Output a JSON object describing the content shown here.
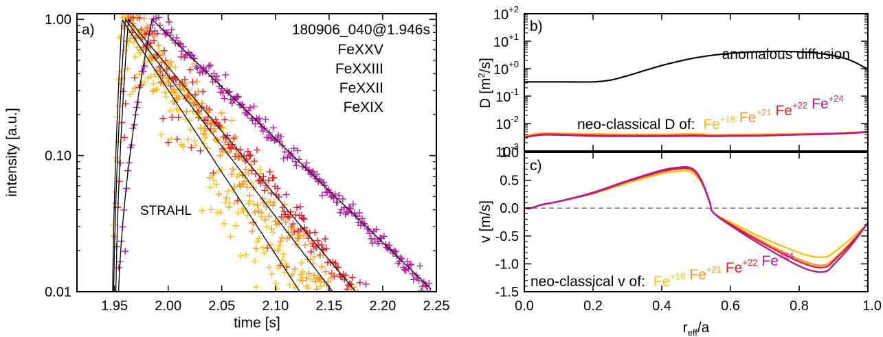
{
  "colors": {
    "FeXXV": "#b5179e",
    "FeXXIII": "#e8191f",
    "FeXXII": "#f7941d",
    "FeXIX": "#fdc010",
    "axis": "#000000",
    "zero_line": "#666666"
  },
  "chart_data": [
    {
      "id": "a",
      "type": "scatter",
      "panel_label": "a)",
      "shot_label": "180906_040@1.946s",
      "annotation": "STRAHL",
      "xlabel": "time [s]",
      "ylabel": "intensity [a.u.]",
      "xlim": [
        1.915,
        2.25
      ],
      "ylim": [
        0.01,
        1.1
      ],
      "yscale": "log",
      "xticks": [
        "1.95",
        "2.00",
        "2.05",
        "2.10",
        "2.15",
        "2.20",
        "2.25"
      ],
      "xtick_values": [
        1.95,
        2.0,
        2.05,
        2.1,
        2.15,
        2.2,
        2.25
      ],
      "yticks": [
        "1.00",
        "0.10",
        "0.01"
      ],
      "ytick_values": [
        1.0,
        0.1,
        0.01
      ],
      "legend_position": "top-right",
      "series": [
        {
          "name": "FeXXV",
          "t_rise": 1.953,
          "t_peak": 1.985,
          "decay_tau": 0.057,
          "t_end": 2.245,
          "scatter": 0.08
        },
        {
          "name": "FeXXIII",
          "t_rise": 1.951,
          "t_peak": 1.963,
          "decay_tau": 0.046,
          "t_end": 2.245,
          "scatter": 0.14
        },
        {
          "name": "FeXXII",
          "t_rise": 1.949,
          "t_peak": 1.96,
          "decay_tau": 0.042,
          "t_end": 2.245,
          "scatter": 0.24
        },
        {
          "name": "FeXIX",
          "t_rise": 1.948,
          "t_peak": 1.957,
          "decay_tau": 0.036,
          "t_end": 2.245,
          "scatter": 0.4
        }
      ]
    },
    {
      "id": "b",
      "type": "line",
      "panel_label": "b)",
      "ylabel": "D [m²/s]",
      "yscale": "log",
      "ylim": [
        0.001,
        100
      ],
      "xlim": [
        0,
        1
      ],
      "yticks_mantissa": "10",
      "yticks_exponents": [
        "+2",
        "+1",
        "+0",
        "-1",
        "-2",
        "-3"
      ],
      "ytick_values": [
        100,
        10,
        1,
        0.1,
        0.01,
        0.001
      ],
      "annotation": "anomalous diffusion",
      "neo_label": "neo-classical D of:",
      "anomalous": {
        "x": [
          0.0,
          0.1,
          0.2,
          0.25,
          0.3,
          0.35,
          0.4,
          0.45,
          0.5,
          0.55,
          0.6,
          0.65,
          0.7,
          0.75,
          0.8,
          0.85,
          0.9,
          0.95,
          1.0
        ],
        "y": [
          0.33,
          0.33,
          0.33,
          0.38,
          0.55,
          0.85,
          1.3,
          1.85,
          2.5,
          3.1,
          3.6,
          4.0,
          4.2,
          4.25,
          4.1,
          3.7,
          3.0,
          2.0,
          0.95
        ]
      },
      "series": [
        {
          "name": "Fe+18",
          "ion": "Fe",
          "charge": "+18",
          "x": [
            0.0,
            0.05,
            0.1,
            0.2,
            0.3,
            0.4,
            0.5,
            0.55,
            0.6,
            0.7,
            0.8,
            0.9,
            1.0
          ],
          "y": [
            0.0035,
            0.0045,
            0.0045,
            0.0042,
            0.0041,
            0.0041,
            0.0042,
            0.004,
            0.004,
            0.0041,
            0.0043,
            0.0045,
            0.0051
          ]
        },
        {
          "name": "Fe+21",
          "ion": "Fe",
          "charge": "+21",
          "x": [
            0.0,
            0.05,
            0.1,
            0.2,
            0.3,
            0.4,
            0.5,
            0.55,
            0.6,
            0.7,
            0.8,
            0.9,
            1.0
          ],
          "y": [
            0.0033,
            0.0042,
            0.0042,
            0.0039,
            0.0038,
            0.0038,
            0.0039,
            0.0037,
            0.0038,
            0.0039,
            0.0041,
            0.0044,
            0.005
          ]
        },
        {
          "name": "Fe+22",
          "ion": "Fe",
          "charge": "+22",
          "x": [
            0.0,
            0.05,
            0.1,
            0.2,
            0.3,
            0.4,
            0.5,
            0.55,
            0.6,
            0.7,
            0.8,
            0.9,
            1.0
          ],
          "y": [
            0.0032,
            0.004,
            0.004,
            0.0037,
            0.0036,
            0.0036,
            0.0037,
            0.0035,
            0.0036,
            0.0037,
            0.004,
            0.0043,
            0.0049
          ]
        },
        {
          "name": "Fe+24",
          "ion": "Fe",
          "charge": "+24",
          "x": [
            0.0,
            0.05,
            0.1,
            0.2,
            0.3,
            0.4,
            0.5,
            0.55,
            0.6,
            0.7,
            0.8,
            0.9,
            1.0
          ],
          "y": [
            0.0031,
            0.0038,
            0.0038,
            0.0035,
            0.0034,
            0.0034,
            0.0035,
            0.0034,
            0.0035,
            0.0036,
            0.0039,
            0.0042,
            0.0048
          ]
        }
      ]
    },
    {
      "id": "c",
      "type": "line",
      "panel_label": "c)",
      "xlabel_main": "r",
      "xlabel_sub": "eff",
      "xlabel_tail": "/a",
      "ylabel": "v [m/s]",
      "xlim": [
        0,
        1
      ],
      "ylim": [
        -1.5,
        1.0
      ],
      "xticks": [
        "0.0",
        "0.2",
        "0.4",
        "0.6",
        "0.8",
        "1.0"
      ],
      "xtick_values": [
        0,
        0.2,
        0.4,
        0.6,
        0.8,
        1.0
      ],
      "yticks": [
        "1.0",
        "0.5",
        "0.0",
        "-0.5",
        "-1.0",
        "-1.5"
      ],
      "ytick_values": [
        1.0,
        0.5,
        0.0,
        -0.5,
        -1.0,
        -1.5
      ],
      "zero_line": 0.0,
      "neo_label": "neo-classical v of:",
      "series": [
        {
          "name": "Fe+18",
          "ion": "Fe",
          "charge": "+18",
          "x": [
            0.0,
            0.02,
            0.05,
            0.1,
            0.2,
            0.3,
            0.4,
            0.45,
            0.48,
            0.5,
            0.52,
            0.54,
            0.55,
            0.6,
            0.7,
            0.8,
            0.85,
            0.88,
            0.9,
            0.95,
            1.0
          ],
          "y": [
            0.0,
            0.0,
            0.06,
            0.12,
            0.26,
            0.45,
            0.62,
            0.66,
            0.66,
            0.58,
            0.4,
            0.1,
            -0.08,
            -0.25,
            -0.55,
            -0.8,
            -0.88,
            -0.87,
            -0.8,
            -0.55,
            -0.28
          ]
        },
        {
          "name": "Fe+21",
          "ion": "Fe",
          "charge": "+21",
          "x": [
            0.0,
            0.02,
            0.05,
            0.1,
            0.2,
            0.3,
            0.4,
            0.45,
            0.48,
            0.5,
            0.52,
            0.54,
            0.55,
            0.6,
            0.7,
            0.8,
            0.85,
            0.88,
            0.9,
            0.95,
            1.0
          ],
          "y": [
            0.0,
            0.0,
            0.06,
            0.12,
            0.27,
            0.47,
            0.65,
            0.7,
            0.7,
            0.62,
            0.42,
            0.1,
            -0.08,
            -0.28,
            -0.62,
            -0.92,
            -1.02,
            -1.01,
            -0.92,
            -0.62,
            -0.28
          ]
        },
        {
          "name": "Fe+22",
          "ion": "Fe",
          "charge": "+22",
          "x": [
            0.0,
            0.02,
            0.05,
            0.1,
            0.2,
            0.3,
            0.4,
            0.45,
            0.48,
            0.5,
            0.52,
            0.54,
            0.55,
            0.6,
            0.7,
            0.8,
            0.85,
            0.88,
            0.9,
            0.95,
            1.0
          ],
          "y": [
            0.0,
            0.0,
            0.06,
            0.12,
            0.27,
            0.48,
            0.66,
            0.71,
            0.71,
            0.63,
            0.43,
            0.1,
            -0.08,
            -0.29,
            -0.65,
            -0.96,
            -1.06,
            -1.05,
            -0.95,
            -0.64,
            -0.27
          ]
        },
        {
          "name": "Fe+24",
          "ion": "Fe",
          "charge": "+24",
          "x": [
            0.0,
            0.02,
            0.05,
            0.1,
            0.2,
            0.3,
            0.4,
            0.45,
            0.48,
            0.5,
            0.52,
            0.54,
            0.55,
            0.6,
            0.7,
            0.8,
            0.85,
            0.88,
            0.9,
            0.95,
            1.0
          ],
          "y": [
            0.0,
            0.0,
            0.06,
            0.12,
            0.28,
            0.49,
            0.68,
            0.73,
            0.73,
            0.65,
            0.44,
            0.1,
            -0.08,
            -0.31,
            -0.7,
            -1.04,
            -1.14,
            -1.13,
            -1.02,
            -0.68,
            -0.26
          ]
        }
      ]
    }
  ]
}
